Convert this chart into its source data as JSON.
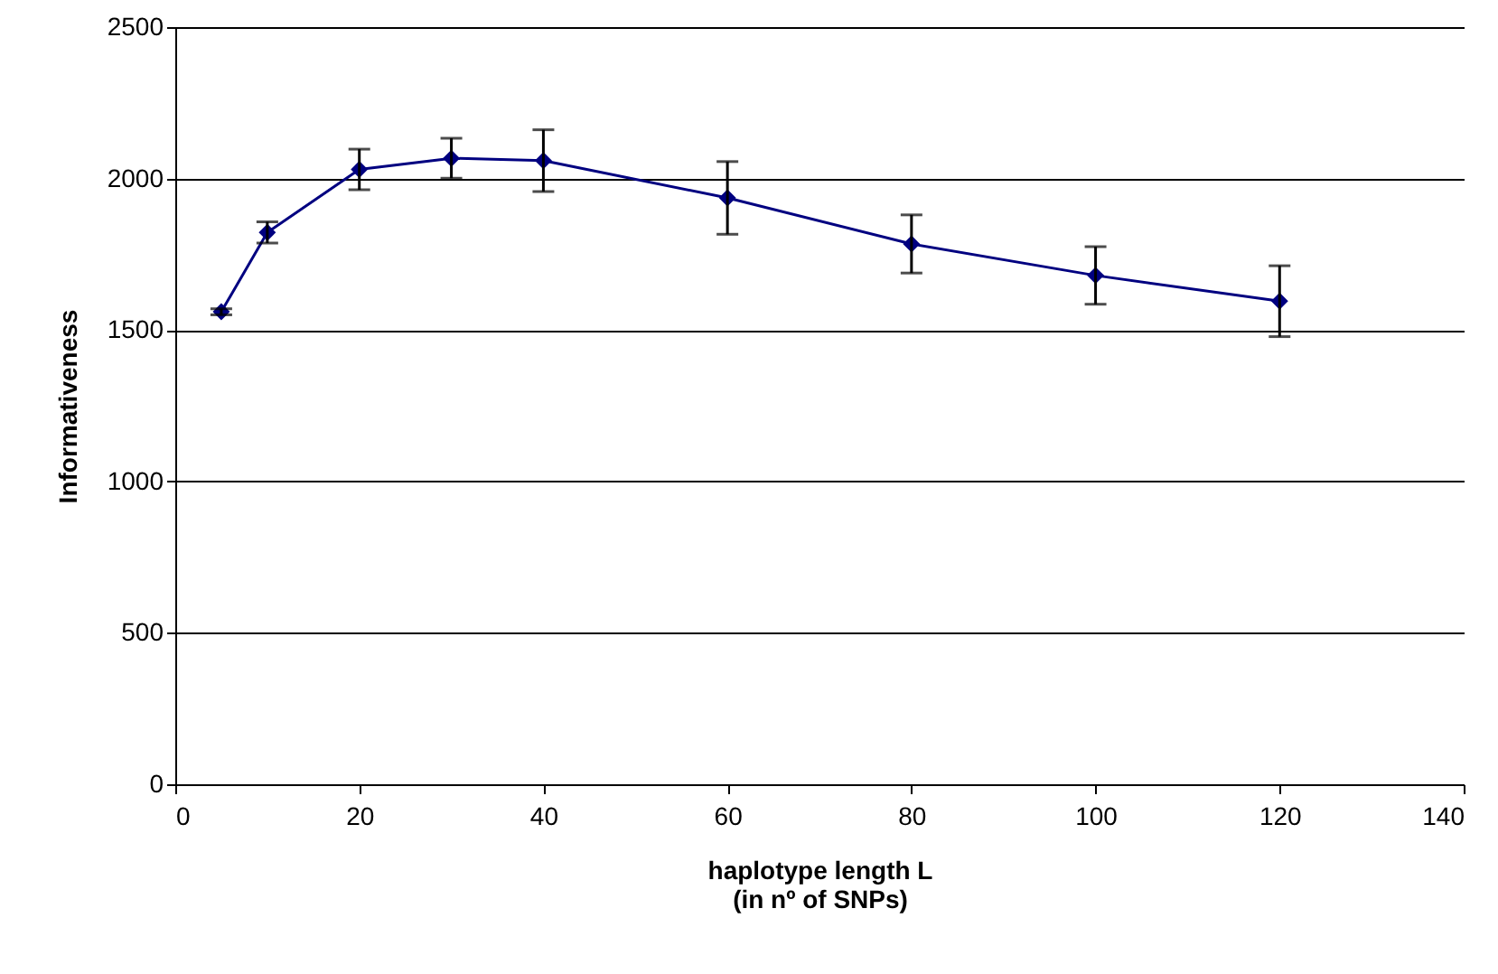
{
  "chart_data": {
    "type": "line",
    "xlabel": "haplotype length L\n(in nº of SNPs)",
    "ylabel": "Informativeness",
    "x": [
      5,
      10,
      20,
      30,
      40,
      60,
      80,
      100,
      120
    ],
    "series": [
      {
        "color": "#000080",
        "values": [
          1560,
          1822,
          2030,
          2067,
          2059,
          1936,
          1784,
          1680,
          1595
        ],
        "errors": [
          10,
          35,
          67,
          66,
          102,
          120,
          96,
          95,
          117
        ]
      }
    ],
    "xlim": [
      0,
      140
    ],
    "xticks": [
      0,
      20,
      40,
      60,
      80,
      100,
      120,
      140
    ],
    "ylim": [
      0,
      2500
    ],
    "yticks": [
      0,
      500,
      1000,
      1500,
      2000,
      2500
    ],
    "grid": "y",
    "marker": "diamond",
    "line_style": "solid"
  }
}
